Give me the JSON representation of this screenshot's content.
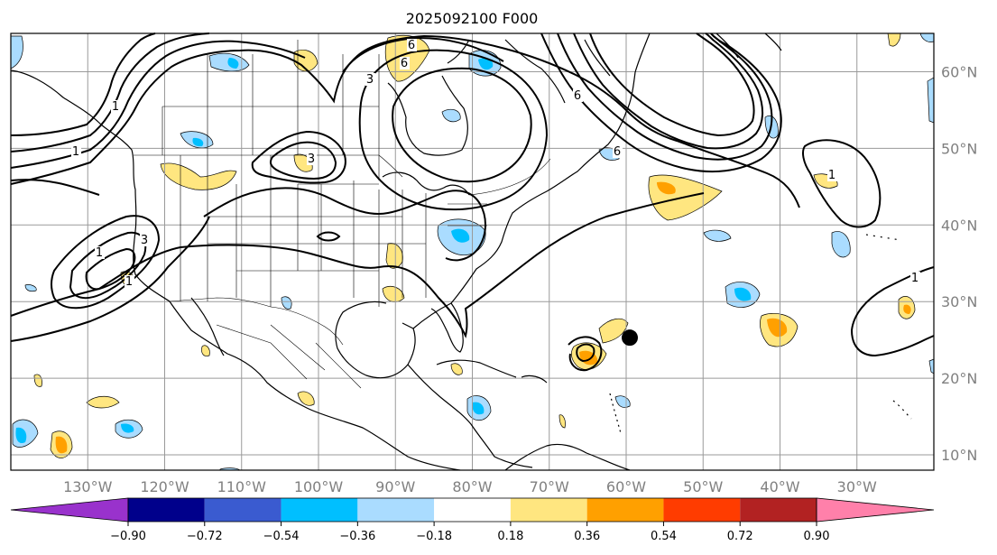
{
  "title": "2025092100 F000",
  "map": {
    "lat_labels": [
      "10°N",
      "20°N",
      "30°N",
      "40°N",
      "50°N",
      "60°N"
    ],
    "lat_values": [
      10,
      20,
      30,
      40,
      50,
      60
    ],
    "lon_labels": [
      "130°W",
      "120°W",
      "110°W",
      "100°W",
      "90°W",
      "80°W",
      "70°W",
      "60°W",
      "50°W",
      "40°W",
      "30°W"
    ],
    "lon_values": [
      -130,
      -120,
      -110,
      -100,
      -90,
      -80,
      -70,
      -60,
      -50,
      -40,
      -30
    ],
    "lon_range": [
      -140,
      -20
    ],
    "lat_range": [
      8,
      65
    ],
    "grid": true,
    "storm_marker": {
      "lon": -60,
      "lat": 26
    },
    "contour_labels": [
      "1",
      "1",
      "1",
      "1",
      "3",
      "3",
      "3",
      "6",
      "6",
      "6",
      "6",
      "1",
      "1"
    ]
  },
  "colorbar": {
    "tick_labels": [
      "−0.90",
      "−0.72",
      "−0.54",
      "−0.36",
      "−0.18",
      "0.18",
      "0.36",
      "0.54",
      "0.72",
      "0.90"
    ],
    "colors": [
      "#9932cc",
      "#00008b",
      "#3a5bd0",
      "#00bfff",
      "#aadcff",
      "#ffffff",
      "#ffe680",
      "#ffa000",
      "#ff3c00",
      "#b22222",
      "#ff80aa"
    ],
    "extend": "both"
  },
  "colors": {
    "neg_light": "#aadcff",
    "neg_mid": "#00bfff",
    "pos_light": "#ffe680",
    "pos_mid": "#ffa000",
    "grid": "#9a9a9a"
  }
}
